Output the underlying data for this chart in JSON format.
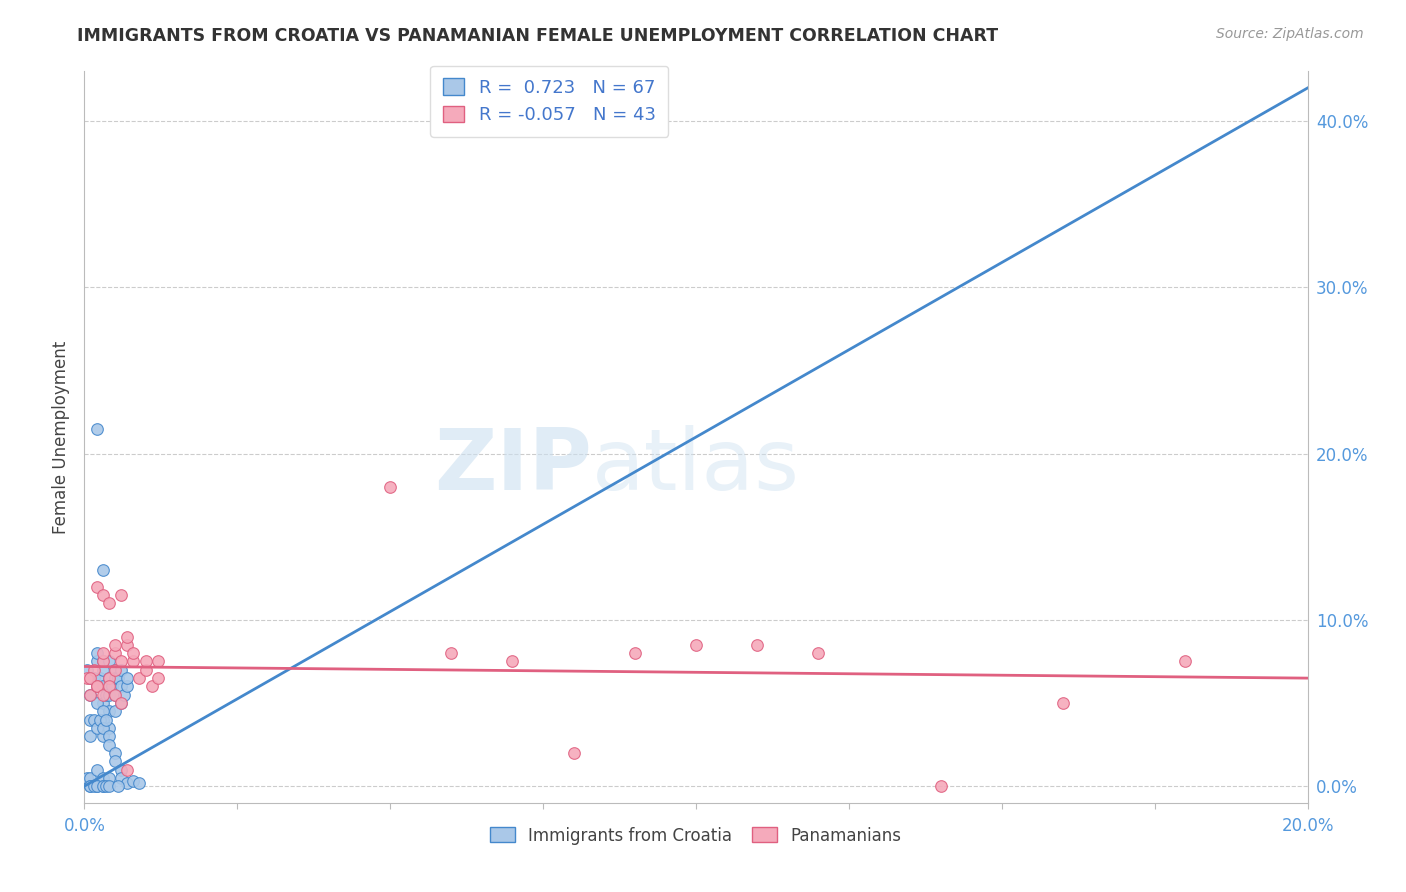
{
  "title": "IMMIGRANTS FROM CROATIA VS PANAMANIAN FEMALE UNEMPLOYMENT CORRELATION CHART",
  "source": "Source: ZipAtlas.com",
  "ylabel": "Female Unemployment",
  "right_ytick_vals": [
    0.0,
    0.1,
    0.2,
    0.3,
    0.4
  ],
  "xlim": [
    0.0,
    0.2
  ],
  "ylim": [
    -0.01,
    0.43
  ],
  "blue_R": 0.723,
  "blue_N": 67,
  "pink_R": -0.057,
  "pink_N": 43,
  "blue_color": "#aac8e8",
  "pink_color": "#f5aabb",
  "blue_line_color": "#4488cc",
  "pink_line_color": "#e06080",
  "legend_label_blue": "Immigrants from Croatia",
  "legend_label_pink": "Panamanians",
  "watermark_zip": "ZIP",
  "watermark_atlas": "atlas",
  "background_color": "#ffffff",
  "blue_line_x0": 0.0,
  "blue_line_y0": 0.0,
  "blue_line_x1": 0.2,
  "blue_line_y1": 0.42,
  "pink_line_x0": 0.0,
  "pink_line_y0": 0.072,
  "pink_line_x1": 0.2,
  "pink_line_y1": 0.065,
  "blue_scatter_x": [
    0.0005,
    0.001,
    0.001,
    0.0015,
    0.002,
    0.002,
    0.002,
    0.0025,
    0.003,
    0.003,
    0.003,
    0.003,
    0.003,
    0.003,
    0.0035,
    0.004,
    0.004,
    0.004,
    0.004,
    0.004,
    0.0045,
    0.005,
    0.005,
    0.005,
    0.005,
    0.0055,
    0.006,
    0.006,
    0.006,
    0.0065,
    0.007,
    0.007,
    0.001,
    0.001,
    0.0015,
    0.002,
    0.002,
    0.0025,
    0.003,
    0.003,
    0.0035,
    0.004,
    0.004,
    0.005,
    0.005,
    0.006,
    0.006,
    0.007,
    0.008,
    0.009,
    0.0005,
    0.001,
    0.002,
    0.003,
    0.004,
    0.001,
    0.002,
    0.003,
    0.001,
    0.0015,
    0.002,
    0.003,
    0.0035,
    0.004,
    0.0055,
    0.002,
    0.003
  ],
  "blue_scatter_y": [
    0.07,
    0.065,
    0.055,
    0.065,
    0.075,
    0.08,
    0.06,
    0.065,
    0.07,
    0.075,
    0.06,
    0.05,
    0.04,
    0.03,
    0.055,
    0.065,
    0.075,
    0.055,
    0.045,
    0.035,
    0.06,
    0.07,
    0.065,
    0.055,
    0.045,
    0.065,
    0.07,
    0.06,
    0.05,
    0.055,
    0.06,
    0.065,
    0.04,
    0.03,
    0.04,
    0.05,
    0.035,
    0.04,
    0.045,
    0.035,
    0.04,
    0.03,
    0.025,
    0.02,
    0.015,
    0.01,
    0.005,
    0.002,
    0.003,
    0.002,
    0.005,
    0.005,
    0.01,
    0.005,
    0.005,
    0.0,
    0.0,
    0.0,
    0.0,
    0.0,
    0.0,
    0.0,
    0.0,
    0.0,
    0.0,
    0.215,
    0.13
  ],
  "pink_scatter_x": [
    0.0005,
    0.001,
    0.0015,
    0.002,
    0.002,
    0.003,
    0.003,
    0.003,
    0.004,
    0.004,
    0.005,
    0.005,
    0.005,
    0.006,
    0.006,
    0.007,
    0.007,
    0.008,
    0.008,
    0.009,
    0.01,
    0.01,
    0.011,
    0.012,
    0.012,
    0.001,
    0.002,
    0.003,
    0.004,
    0.005,
    0.006,
    0.007,
    0.05,
    0.06,
    0.07,
    0.08,
    0.09,
    0.1,
    0.11,
    0.12,
    0.14,
    0.16,
    0.18
  ],
  "pink_scatter_y": [
    0.065,
    0.055,
    0.07,
    0.06,
    0.12,
    0.075,
    0.08,
    0.115,
    0.065,
    0.11,
    0.08,
    0.085,
    0.07,
    0.075,
    0.115,
    0.085,
    0.09,
    0.075,
    0.08,
    0.065,
    0.07,
    0.075,
    0.06,
    0.065,
    0.075,
    0.065,
    0.06,
    0.055,
    0.06,
    0.055,
    0.05,
    0.01,
    0.18,
    0.08,
    0.075,
    0.02,
    0.08,
    0.085,
    0.085,
    0.08,
    0.0,
    0.05,
    0.075
  ]
}
